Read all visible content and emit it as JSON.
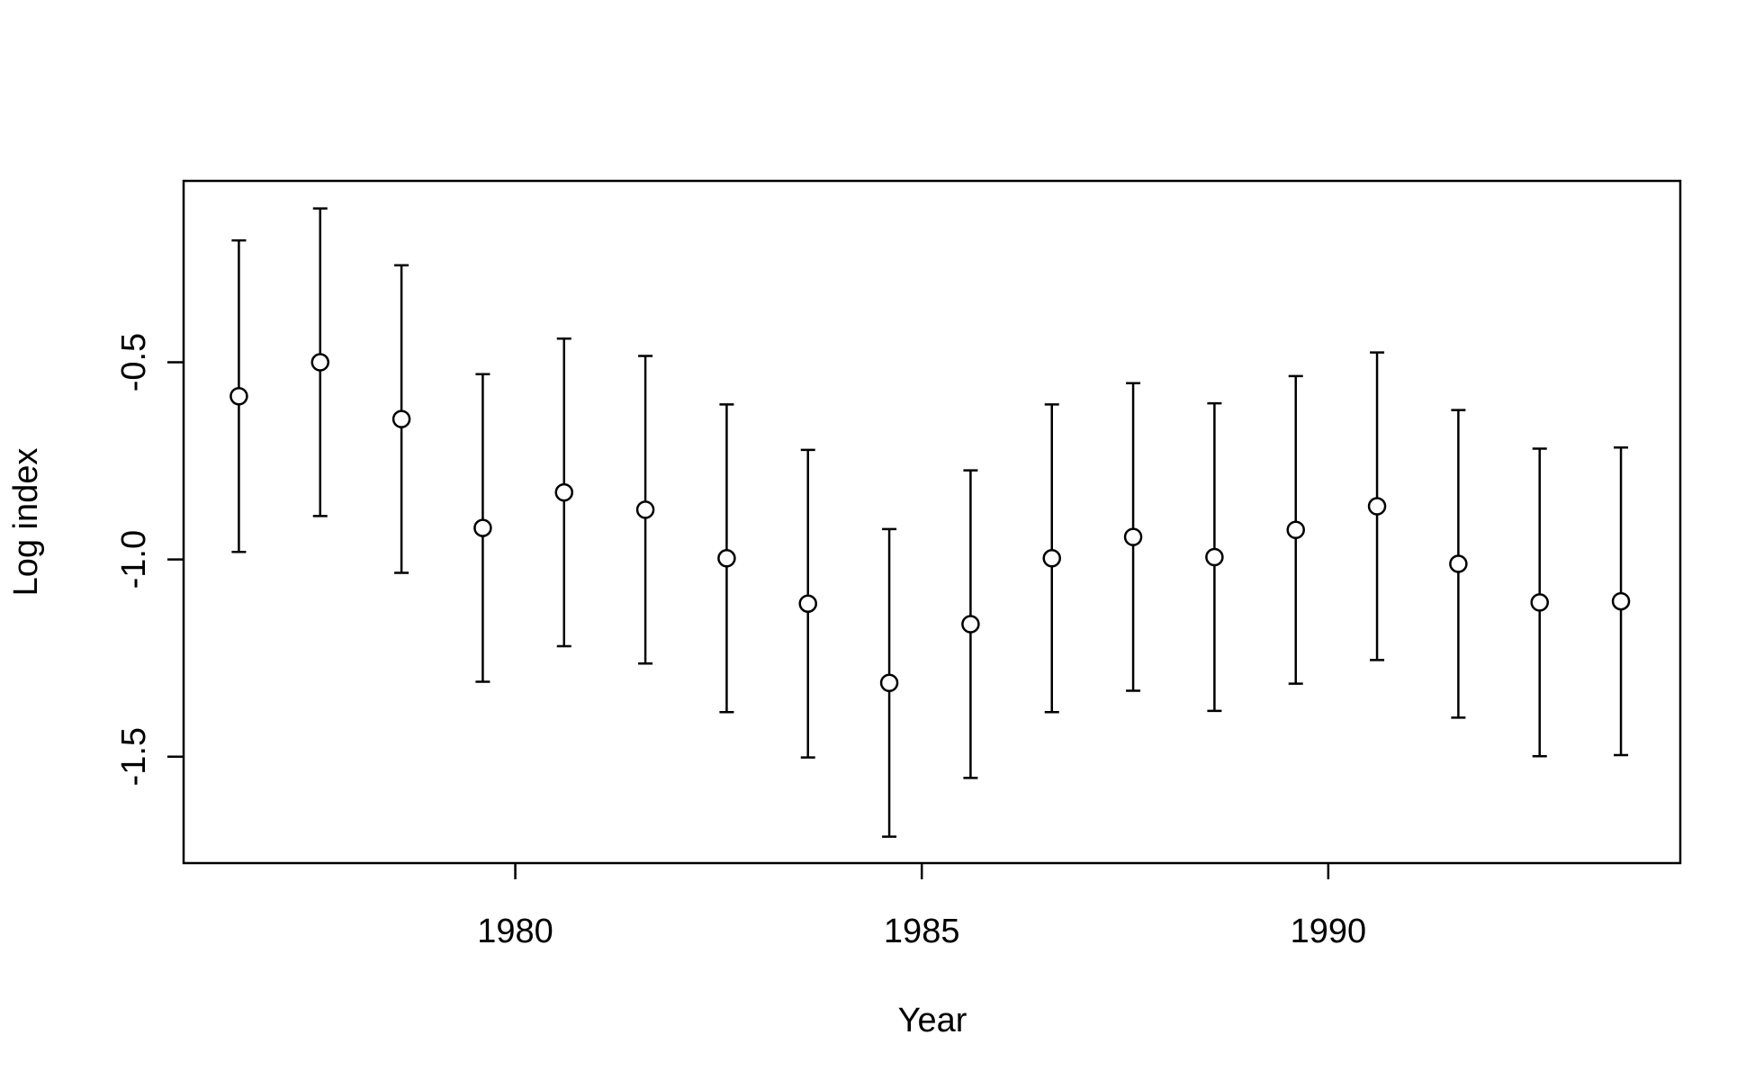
{
  "chart_data": {
    "type": "errorbar",
    "x_label": "Year",
    "y_label": "Log index",
    "x": [
      1976.6,
      1977.6,
      1978.6,
      1979.6,
      1980.6,
      1981.6,
      1982.6,
      1983.6,
      1984.6,
      1985.6,
      1986.6,
      1987.6,
      1988.6,
      1989.6,
      1990.6,
      1991.6,
      1992.6,
      1993.6
    ],
    "values": [
      -0.586,
      -0.5,
      -0.644,
      -0.92,
      -0.83,
      -0.874,
      -0.997,
      -1.112,
      -1.313,
      -1.164,
      -0.997,
      -0.943,
      -0.994,
      -0.925,
      -0.865,
      -1.011,
      -1.109,
      -1.106
    ],
    "errors": [
      0.395,
      0.39,
      0.39,
      0.39,
      0.39,
      0.39,
      0.39,
      0.39,
      0.39,
      0.39,
      0.39,
      0.39,
      0.39,
      0.39,
      0.39,
      0.39,
      0.39,
      0.39
    ],
    "color": "#000000",
    "xlim": [
      1975.92,
      1994.33
    ],
    "xticks": [
      1980,
      1985,
      1990
    ],
    "ylim": [
      -1.77,
      -0.04
    ],
    "yticks": [
      -0.5,
      {
        "value": -1,
        "label": "-1.0"
      },
      -1.5
    ],
    "grid": false
  }
}
